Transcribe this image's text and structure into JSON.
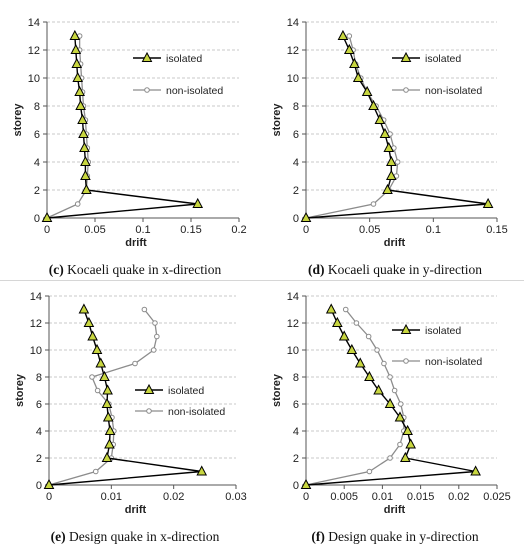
{
  "colors": {
    "grid": "#b8b8b8",
    "axis": "#555555",
    "isolated_line": "#000000",
    "isolated_marker": "#c8d640",
    "nonisolated_line": "#8c8c8c",
    "nonisolated_marker": "#ffffff"
  },
  "chart_data": [
    {
      "id": "c",
      "type": "line",
      "caption_letter": "(c)",
      "caption_text": " Kocaeli quake in x-direction",
      "xlabel": "drift",
      "ylabel": "storey",
      "xlim": [
        0,
        0.2
      ],
      "ylim": [
        0,
        14
      ],
      "xticks": [
        0,
        0.05,
        0.1,
        0.15,
        0.2
      ],
      "xtick_labels": [
        "0",
        "0.05",
        "0.1",
        "0.15",
        "0.2"
      ],
      "yticks": [
        0,
        2,
        4,
        6,
        8,
        10,
        12,
        14
      ],
      "ytick_labels": [
        "0",
        "2",
        "4",
        "6",
        "8",
        "10",
        "12",
        "14"
      ],
      "legend_position": "top-right",
      "grid": "horizontal dashed",
      "series": [
        {
          "name": "isolated",
          "points": [
            [
              0,
              0
            ],
            [
              0.157,
              1
            ],
            [
              0.041,
              2
            ],
            [
              0.04,
              3
            ],
            [
              0.04,
              4
            ],
            [
              0.039,
              5
            ],
            [
              0.038,
              6
            ],
            [
              0.037,
              7
            ],
            [
              0.035,
              8
            ],
            [
              0.034,
              9
            ],
            [
              0.032,
              10
            ],
            [
              0.031,
              11
            ],
            [
              0.03,
              12
            ],
            [
              0.029,
              13
            ]
          ]
        },
        {
          "name": "non-isolated",
          "points": [
            [
              0,
              0
            ],
            [
              0.032,
              1
            ],
            [
              0.041,
              2
            ],
            [
              0.042,
              3
            ],
            [
              0.043,
              4
            ],
            [
              0.042,
              5
            ],
            [
              0.041,
              6
            ],
            [
              0.04,
              7
            ],
            [
              0.038,
              8
            ],
            [
              0.037,
              9
            ],
            [
              0.036,
              10
            ],
            [
              0.035,
              11
            ],
            [
              0.034,
              12
            ],
            [
              0.034,
              13
            ]
          ]
        }
      ]
    },
    {
      "id": "d",
      "type": "line",
      "caption_letter": "(d)",
      "caption_text": " Kocaeli quake in y-direction",
      "xlabel": "drift",
      "ylabel": "storey",
      "xlim": [
        0,
        0.15
      ],
      "ylim": [
        0,
        14
      ],
      "xticks": [
        0,
        0.05,
        0.1,
        0.15
      ],
      "xtick_labels": [
        "0",
        "0.05",
        "0.1",
        "0.15"
      ],
      "yticks": [
        0,
        2,
        4,
        6,
        8,
        10,
        12,
        14
      ],
      "ytick_labels": [
        "0",
        "2",
        "4",
        "6",
        "8",
        "10",
        "12",
        "14"
      ],
      "legend_position": "top-right",
      "grid": "horizontal dashed",
      "series": [
        {
          "name": "isolated",
          "points": [
            [
              0,
              0
            ],
            [
              0.143,
              1
            ],
            [
              0.064,
              2
            ],
            [
              0.067,
              3
            ],
            [
              0.067,
              4
            ],
            [
              0.065,
              5
            ],
            [
              0.062,
              6
            ],
            [
              0.058,
              7
            ],
            [
              0.053,
              8
            ],
            [
              0.048,
              9
            ],
            [
              0.041,
              10
            ],
            [
              0.038,
              11
            ],
            [
              0.034,
              12
            ],
            [
              0.029,
              13
            ]
          ]
        },
        {
          "name": "non-isolated",
          "points": [
            [
              0,
              0
            ],
            [
              0.053,
              1
            ],
            [
              0.065,
              2
            ],
            [
              0.071,
              3
            ],
            [
              0.072,
              4
            ],
            [
              0.069,
              5
            ],
            [
              0.066,
              6
            ],
            [
              0.061,
              7
            ],
            [
              0.055,
              8
            ],
            [
              0.048,
              9
            ],
            [
              0.043,
              10
            ],
            [
              0.039,
              11
            ],
            [
              0.037,
              12
            ],
            [
              0.034,
              13
            ]
          ]
        }
      ]
    },
    {
      "id": "e",
      "type": "line",
      "caption_letter": "(e)",
      "caption_text": " Design quake in x-direction",
      "xlabel": "drift",
      "ylabel": "storey",
      "xlim": [
        0,
        0.03
      ],
      "ylim": [
        0,
        14
      ],
      "xticks": [
        0,
        0.01,
        0.02,
        0.03
      ],
      "xtick_labels": [
        "0",
        "0.01",
        "0.02",
        "0.03"
      ],
      "yticks": [
        0,
        2,
        4,
        6,
        8,
        10,
        12,
        14
      ],
      "ytick_labels": [
        "0",
        "2",
        "4",
        "6",
        "8",
        "10",
        "12",
        "14"
      ],
      "legend_position": "center-right",
      "grid": "horizontal dashed",
      "series": [
        {
          "name": "isolated",
          "points": [
            [
              0,
              0
            ],
            [
              0.0245,
              1
            ],
            [
              0.0093,
              2
            ],
            [
              0.0097,
              3
            ],
            [
              0.0098,
              4
            ],
            [
              0.0095,
              5
            ],
            [
              0.0093,
              6
            ],
            [
              0.0094,
              7
            ],
            [
              0.0089,
              8
            ],
            [
              0.0083,
              9
            ],
            [
              0.0077,
              10
            ],
            [
              0.007,
              11
            ],
            [
              0.0064,
              12
            ],
            [
              0.0056,
              13
            ]
          ]
        },
        {
          "name": "non-isolated",
          "points": [
            [
              0,
              0
            ],
            [
              0.0075,
              1
            ],
            [
              0.01,
              2
            ],
            [
              0.0103,
              3
            ],
            [
              0.0104,
              4
            ],
            [
              0.0101,
              5
            ],
            [
              0.0096,
              6
            ],
            [
              0.0078,
              7
            ],
            [
              0.0069,
              8
            ],
            [
              0.0138,
              9
            ],
            [
              0.0168,
              10
            ],
            [
              0.0173,
              11
            ],
            [
              0.017,
              12
            ],
            [
              0.0153,
              13
            ]
          ]
        }
      ]
    },
    {
      "id": "f",
      "type": "line",
      "caption_letter": "(f)",
      "caption_text": " Design quake in y-direction",
      "xlabel": "drift",
      "ylabel": "storey",
      "xlim": [
        0,
        0.025
      ],
      "ylim": [
        0,
        14
      ],
      "xticks": [
        0,
        0.005,
        0.01,
        0.015,
        0.02,
        0.025
      ],
      "xtick_labels": [
        "0",
        "0.005",
        "0.01",
        "0.015",
        "0.02",
        "0.025"
      ],
      "yticks": [
        0,
        2,
        4,
        6,
        8,
        10,
        12,
        14
      ],
      "ytick_labels": [
        "0",
        "2",
        "4",
        "6",
        "8",
        "10",
        "12",
        "14"
      ],
      "legend_position": "top-right",
      "grid": "horizontal dashed",
      "series": [
        {
          "name": "isolated",
          "points": [
            [
              0,
              0
            ],
            [
              0.0222,
              1
            ],
            [
              0.013,
              2
            ],
            [
              0.0137,
              3
            ],
            [
              0.0133,
              4
            ],
            [
              0.0123,
              5
            ],
            [
              0.011,
              6
            ],
            [
              0.0095,
              7
            ],
            [
              0.0083,
              8
            ],
            [
              0.0071,
              9
            ],
            [
              0.006,
              10
            ],
            [
              0.005,
              11
            ],
            [
              0.0041,
              12
            ],
            [
              0.0033,
              13
            ]
          ]
        },
        {
          "name": "non-isolated",
          "points": [
            [
              0,
              0
            ],
            [
              0.0083,
              1
            ],
            [
              0.011,
              2
            ],
            [
              0.0123,
              3
            ],
            [
              0.0128,
              4
            ],
            [
              0.0128,
              5
            ],
            [
              0.0124,
              6
            ],
            [
              0.0116,
              7
            ],
            [
              0.011,
              8
            ],
            [
              0.0102,
              9
            ],
            [
              0.0093,
              10
            ],
            [
              0.0082,
              11
            ],
            [
              0.0066,
              12
            ],
            [
              0.0052,
              13
            ]
          ]
        }
      ]
    }
  ]
}
